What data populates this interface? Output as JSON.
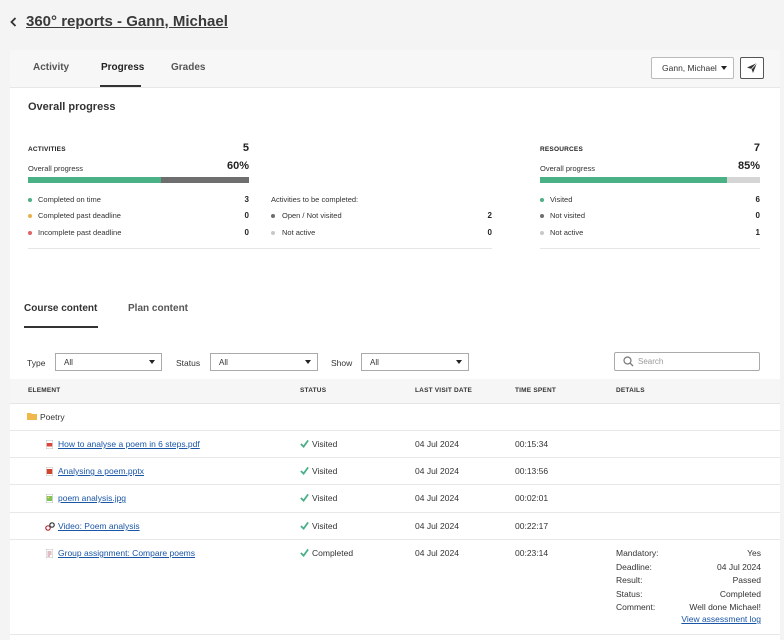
{
  "header": {
    "title": "360° reports - Gann, Michael"
  },
  "tabs": [
    {
      "label": "Activity"
    },
    {
      "label": "Progress"
    },
    {
      "label": "Grades"
    }
  ],
  "user_select": {
    "value": "Gann, Michael"
  },
  "overall": {
    "title": "Overall progress",
    "activities": {
      "caption": "ACTIVITIES",
      "count": "5",
      "progress_label": "Overall progress",
      "progress_pct": "60%",
      "progress_value": 0.6,
      "items": [
        {
          "label": "Completed on time",
          "value": "3",
          "color": "#4ab085"
        },
        {
          "label": "Completed past deadline",
          "value": "0",
          "color": "#e6b34a"
        },
        {
          "label": "Incomplete past deadline",
          "value": "0",
          "color": "#e06464"
        }
      ],
      "to_complete_label": "Activities to be completed:",
      "to_complete": [
        {
          "label": "Open / Not visited",
          "value": "2",
          "color": "#6e6e6e"
        },
        {
          "label": "Not active",
          "value": "0",
          "color": "#c8c8c8"
        }
      ]
    },
    "resources": {
      "caption": "RESOURCES",
      "count": "7",
      "progress_label": "Overall progress",
      "progress_pct": "85%",
      "progress_value": 0.85,
      "items": [
        {
          "label": "Visited",
          "value": "6",
          "color": "#4ab085"
        },
        {
          "label": "Not visited",
          "value": "0",
          "color": "#6e6e6e"
        },
        {
          "label": "Not active",
          "value": "1",
          "color": "#c8c8c8"
        }
      ]
    }
  },
  "content_tabs": [
    {
      "label": "Course content"
    },
    {
      "label": "Plan content"
    }
  ],
  "filters": {
    "type_label": "Type",
    "type_value": "All",
    "status_label": "Status",
    "status_value": "All",
    "show_label": "Show",
    "show_value": "All",
    "search_placeholder": "Search"
  },
  "table": {
    "headers": [
      "ELEMENT",
      "STATUS",
      "LAST VISIT DATE",
      "TIME SPENT",
      "DETAILS"
    ],
    "folder": "Poetry",
    "rows": [
      {
        "name": "How to analyse a poem in 6 steps.pdf",
        "icon": "pdf-icon",
        "status": "Visited",
        "date": "04 Jul 2024",
        "time": "00:15:34"
      },
      {
        "name": "Analysing a poem.pptx",
        "icon": "pptx-icon",
        "status": "Visited",
        "date": "04 Jul 2024",
        "time": "00:13:56"
      },
      {
        "name": "poem analysis.jpg",
        "icon": "image-icon",
        "status": "Visited",
        "date": "04 Jul 2024",
        "time": "00:02:01"
      },
      {
        "name": "Video: Poem analysis",
        "icon": "link-icon",
        "status": "Visited",
        "date": "04 Jul 2024",
        "time": "00:22:17"
      },
      {
        "name": "Group assignment: Compare poems",
        "icon": "assignment-icon",
        "status": "Completed",
        "date": "04 Jul 2024",
        "time": "00:23:14"
      }
    ],
    "details": [
      {
        "label": "Mandatory:",
        "value": "Yes"
      },
      {
        "label": "Deadline:",
        "value": "04 Jul 2024"
      },
      {
        "label": "Result:",
        "value": "Passed"
      },
      {
        "label": "Status:",
        "value": "Completed"
      },
      {
        "label": "Comment:",
        "value": "Well done Michael!"
      }
    ],
    "assessment_link": "View assessment log"
  }
}
